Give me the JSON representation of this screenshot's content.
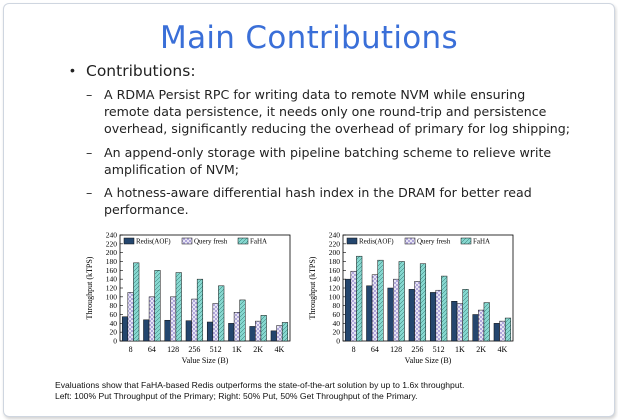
{
  "slide": {
    "title": "Main Contributions",
    "bullet": "Contributions:",
    "items": [
      "A RDMA Persist RPC for writing data to remote NVM while ensuring remote data persistence, it needs only one round-trip and persistence overhead, significantly reducing the overhead of primary for log shipping;",
      "An append-only storage with pipeline batching scheme to relieve write amplification of NVM;",
      "A hotness-aware differential hash index in the DRAM for better read performance."
    ],
    "dash": "–",
    "caption_line1": "Evaluations show that FaHA-based Redis outperforms the state-of-the-art solution by up to 1.6x throughput.",
    "caption_line2": "Left: 100% Put Throughput of the Primary; Right: 50% Put, 50% Get Throughput of the Primary."
  },
  "colors": {
    "title": "#3a6fd8",
    "redis": "#24466e",
    "query": "#a59bd6",
    "faha": "#86d8d0"
  },
  "chart_data": [
    {
      "type": "bar",
      "title": "",
      "xlabel": "Value Size (B)",
      "ylabel": "Throughput (kTPS)",
      "ylim": [
        0,
        240
      ],
      "yticks": [
        "0",
        "20",
        "40",
        "60",
        "80",
        "100",
        "120",
        "140",
        "160",
        "180",
        "200",
        "220",
        "240"
      ],
      "categories": [
        "8",
        "64",
        "128",
        "256",
        "512",
        "1K",
        "2K",
        "4K"
      ],
      "legend_position": "top",
      "series": [
        {
          "name": "Redis(AOF)",
          "values": [
            55,
            48,
            47,
            46,
            43,
            40,
            33,
            23
          ]
        },
        {
          "name": "Query fresh",
          "values": [
            110,
            100,
            100,
            95,
            85,
            65,
            45,
            35
          ]
        },
        {
          "name": "FaHA",
          "values": [
            177,
            160,
            155,
            140,
            125,
            93,
            58,
            42
          ]
        }
      ]
    },
    {
      "type": "bar",
      "title": "",
      "xlabel": "Value Size (B)",
      "ylabel": "Throughput (kTPS)",
      "ylim": [
        0,
        240
      ],
      "yticks": [
        "0",
        "20",
        "40",
        "60",
        "80",
        "100",
        "120",
        "140",
        "160",
        "180",
        "200",
        "220",
        "240"
      ],
      "categories": [
        "8",
        "64",
        "128",
        "256",
        "512",
        "1K",
        "2K",
        "4K"
      ],
      "legend_position": "top",
      "series": [
        {
          "name": "Redis(AOF)",
          "values": [
            140,
            125,
            120,
            117,
            110,
            90,
            60,
            40
          ]
        },
        {
          "name": "Query fresh",
          "values": [
            158,
            150,
            140,
            135,
            115,
            85,
            70,
            45
          ]
        },
        {
          "name": "FaHA",
          "values": [
            192,
            183,
            180,
            175,
            147,
            117,
            87,
            52
          ]
        }
      ]
    }
  ]
}
